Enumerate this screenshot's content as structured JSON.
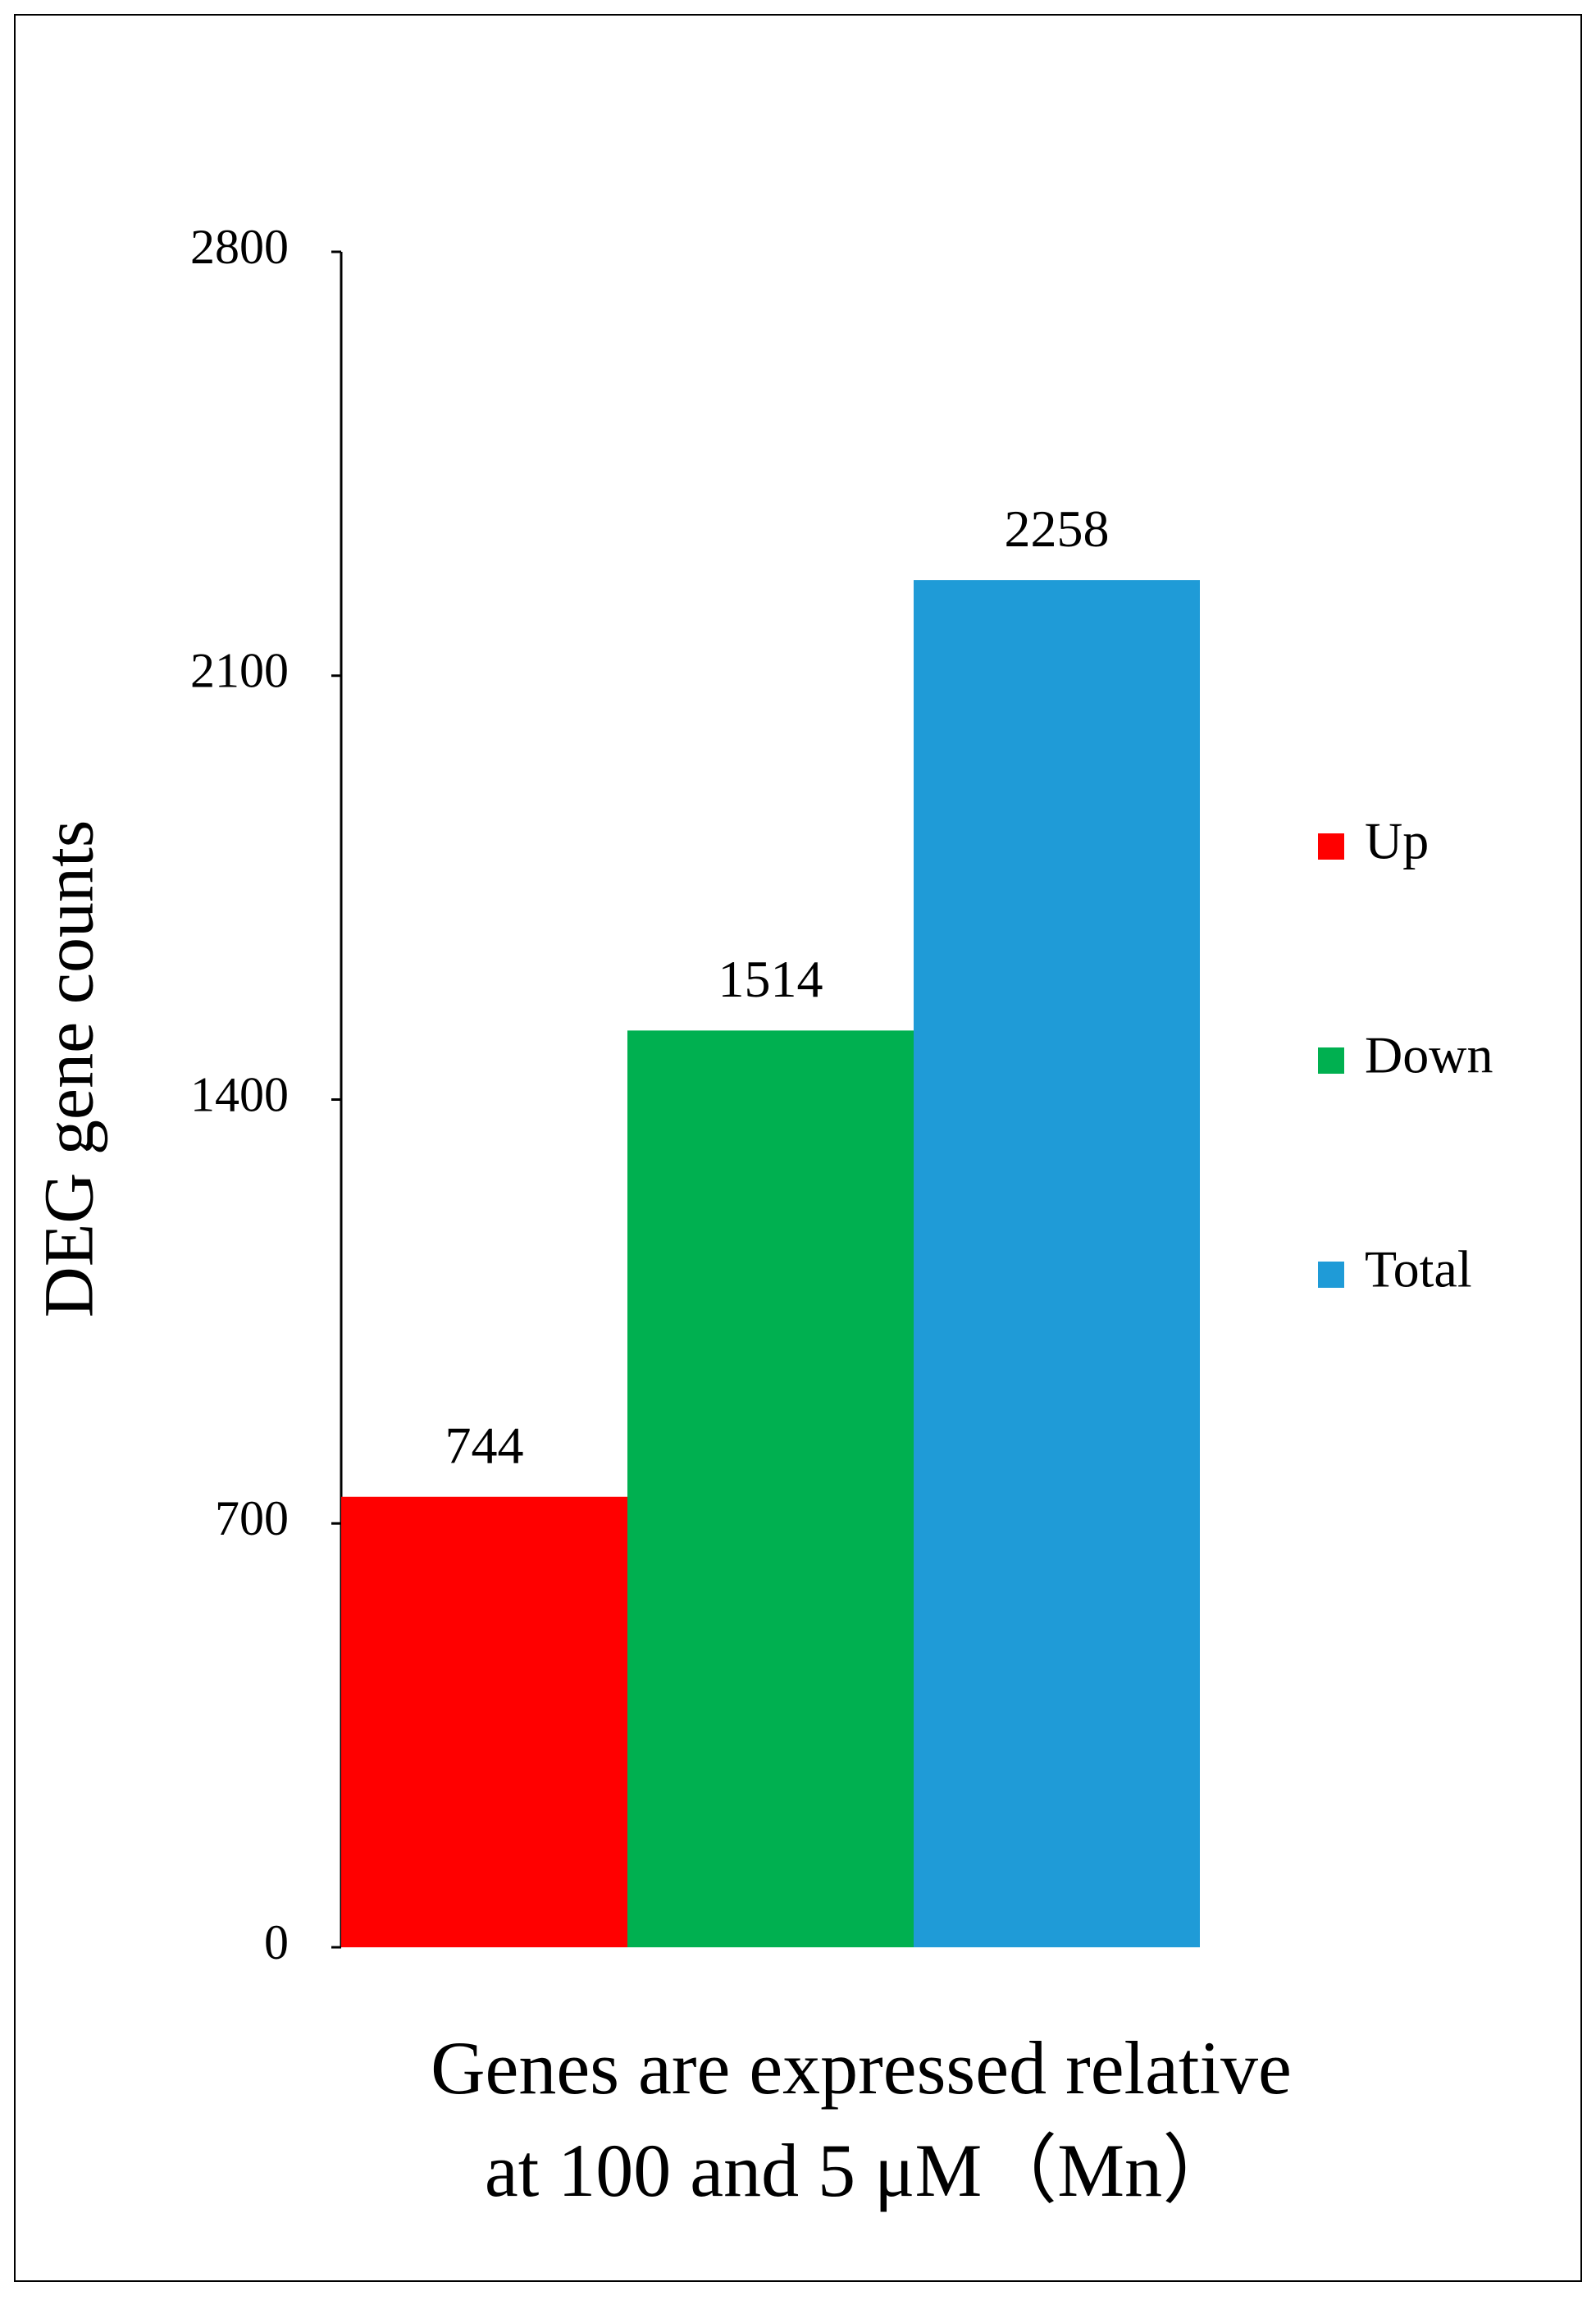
{
  "chart_data": {
    "type": "bar",
    "ylabel": "DEG gene counts",
    "xlabel": [
      "Genes are expressed relative",
      "at 100 and 5 μM（Mn）"
    ],
    "categories": [
      null
    ],
    "series": [
      {
        "name": "Up",
        "color": "#ff0000",
        "values": [
          744
        ]
      },
      {
        "name": "Down",
        "color": "#00b050",
        "values": [
          1514
        ]
      },
      {
        "name": "Total",
        "color": "#1f9bd7",
        "values": [
          2258
        ]
      }
    ],
    "ylim": [
      0,
      2800
    ],
    "yticks": [
      0,
      700,
      1400,
      2100,
      2800
    ],
    "legend": "right",
    "grid": false
  }
}
